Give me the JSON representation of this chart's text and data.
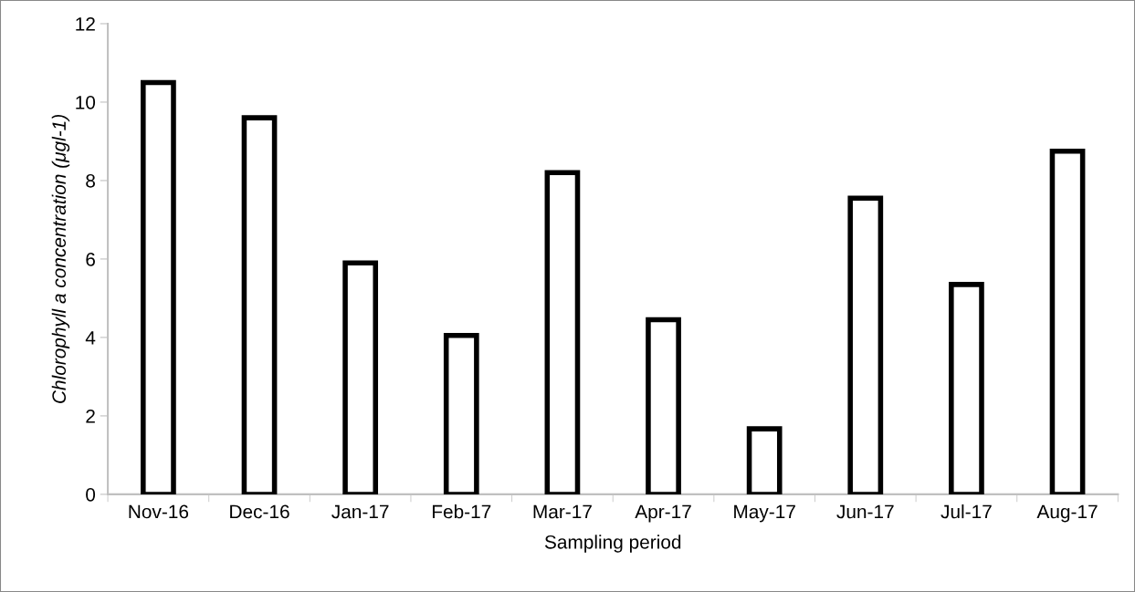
{
  "chart_data": {
    "type": "bar",
    "xlabel": "Sampling period",
    "ylabel": "Chlorophyll a concentration (μgl-1)",
    "categories": [
      "Nov-16",
      "Dec-16",
      "Jan-17",
      "Feb-17",
      "Mar-17",
      "Apr-17",
      "May-17",
      "Jun-17",
      "Jul-17",
      "Aug-17"
    ],
    "values": [
      10.5,
      9.6,
      5.9,
      4.05,
      8.2,
      4.45,
      1.67,
      7.55,
      5.35,
      8.75
    ],
    "color": "#ffffff",
    "ylim": [
      0,
      12
    ],
    "yticks": [
      0,
      2,
      4,
      6,
      8,
      10,
      12
    ],
    "grid": false,
    "legend": false
  }
}
